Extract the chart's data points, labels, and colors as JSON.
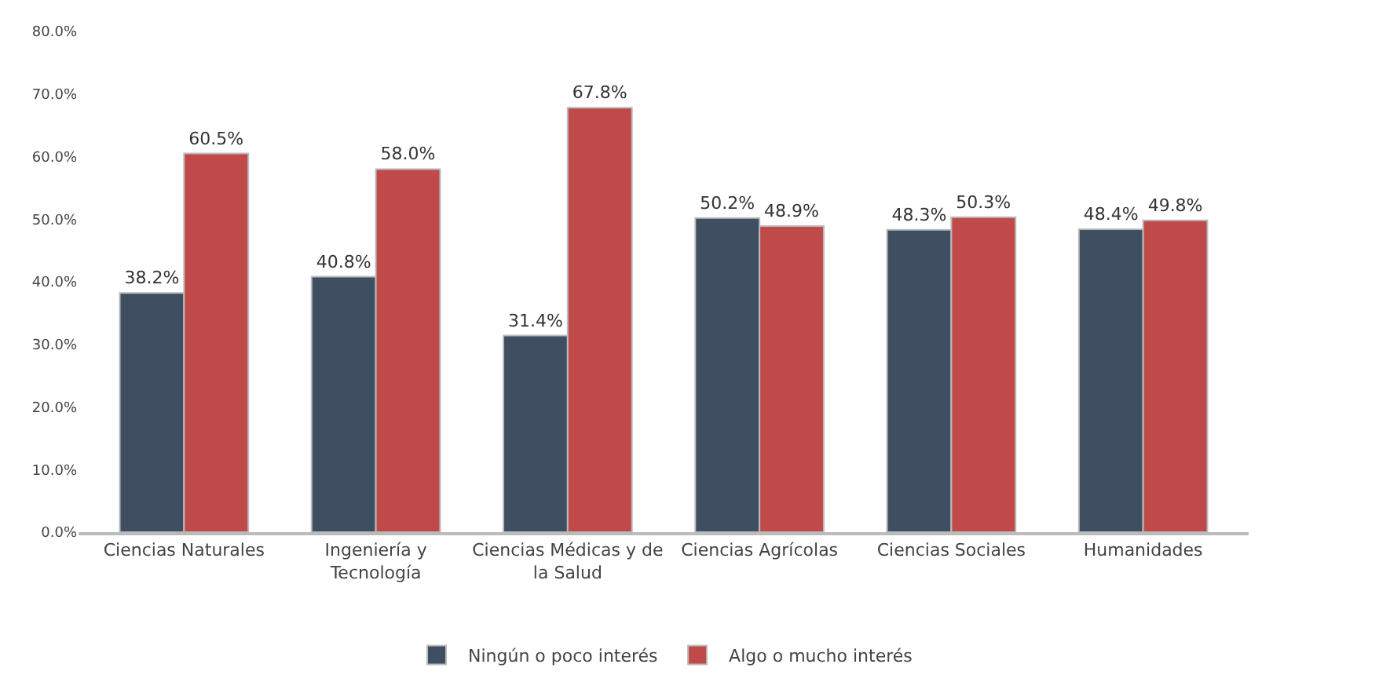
{
  "chart_data": {
    "type": "bar",
    "categories": [
      "Ciencias Naturales",
      "Ingeniería y Tecnología",
      "Ciencias Médicas y de la Salud",
      "Ciencias Agrícolas",
      "Ciencias Sociales",
      "Humanidades"
    ],
    "series": [
      {
        "name": "Ningún o poco interés",
        "color": "#3f4f61",
        "values": [
          38.2,
          40.8,
          31.4,
          50.2,
          48.3,
          48.4
        ],
        "value_labels": [
          "38.2%",
          "40.8%",
          "31.4%",
          "50.2%",
          "48.3%",
          "48.4%"
        ]
      },
      {
        "name": "Algo o mucho interés",
        "color": "#c04a4a",
        "values": [
          60.5,
          58.0,
          67.8,
          48.9,
          50.3,
          49.8
        ],
        "value_labels": [
          "60.5%",
          "58.0%",
          "67.8%",
          "48.9%",
          "50.3%",
          "49.8%"
        ]
      }
    ],
    "ylim": [
      0,
      80
    ],
    "yticks": [
      {
        "value": 0,
        "label": "0.0%"
      },
      {
        "value": 10,
        "label": "10.0%"
      },
      {
        "value": 20,
        "label": "20.0%"
      },
      {
        "value": 30,
        "label": "30.0%"
      },
      {
        "value": 40,
        "label": "40.0%"
      },
      {
        "value": 50,
        "label": "50.0%"
      },
      {
        "value": 60,
        "label": "60.0%"
      },
      {
        "value": 70,
        "label": "70.0%"
      },
      {
        "value": 80,
        "label": "80.0%"
      }
    ],
    "legend": "bottom"
  }
}
